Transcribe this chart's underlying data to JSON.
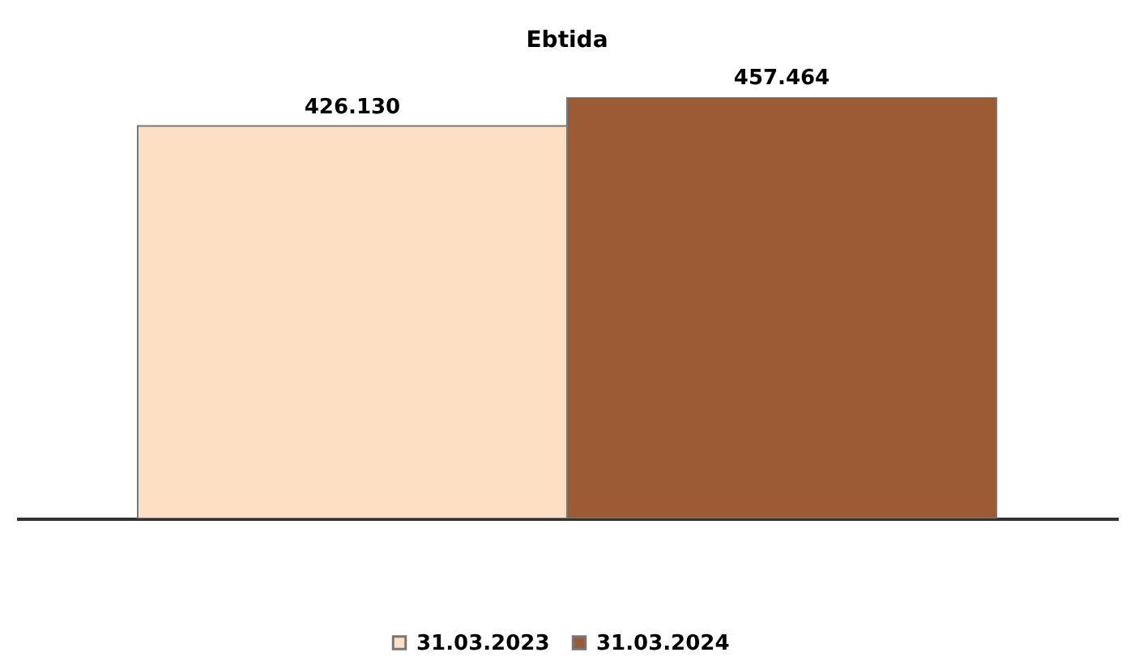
{
  "chart_data": {
    "type": "bar",
    "title": "Ebtida",
    "categories": [
      null
    ],
    "series": [
      {
        "name": "31.03.2023",
        "color": "#fde0c4",
        "values": [
          426.13
        ],
        "value_labels": [
          "426.130"
        ]
      },
      {
        "name": "31.03.2024",
        "color": "#9c5b34",
        "values": [
          457.464
        ],
        "value_labels": [
          "457.464"
        ]
      }
    ],
    "legend": "bottom"
  }
}
